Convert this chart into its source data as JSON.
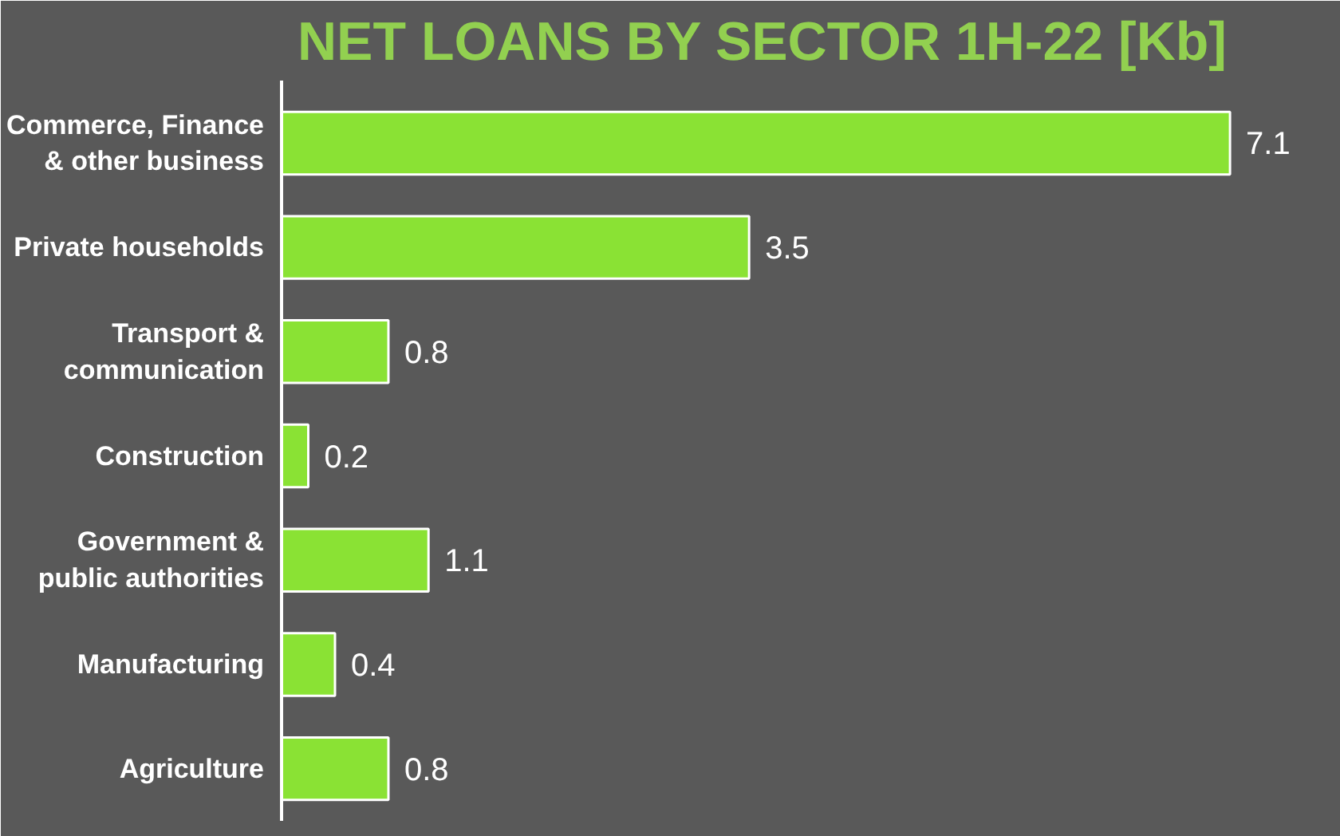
{
  "chart_data": {
    "type": "bar",
    "orientation": "horizontal",
    "title": "NET LOANS BY SECTOR 1H-22 [Kb]",
    "categories": [
      "Commerce, Finance & other business",
      "Private households",
      "Transport & communication",
      "Construction",
      "Government & public authorities",
      "Manufacturing",
      "Agriculture"
    ],
    "values": [
      7.1,
      3.5,
      0.8,
      0.2,
      1.1,
      0.4,
      0.8
    ],
    "color": "#8ae234",
    "data_labels": true,
    "grid": false
  }
}
